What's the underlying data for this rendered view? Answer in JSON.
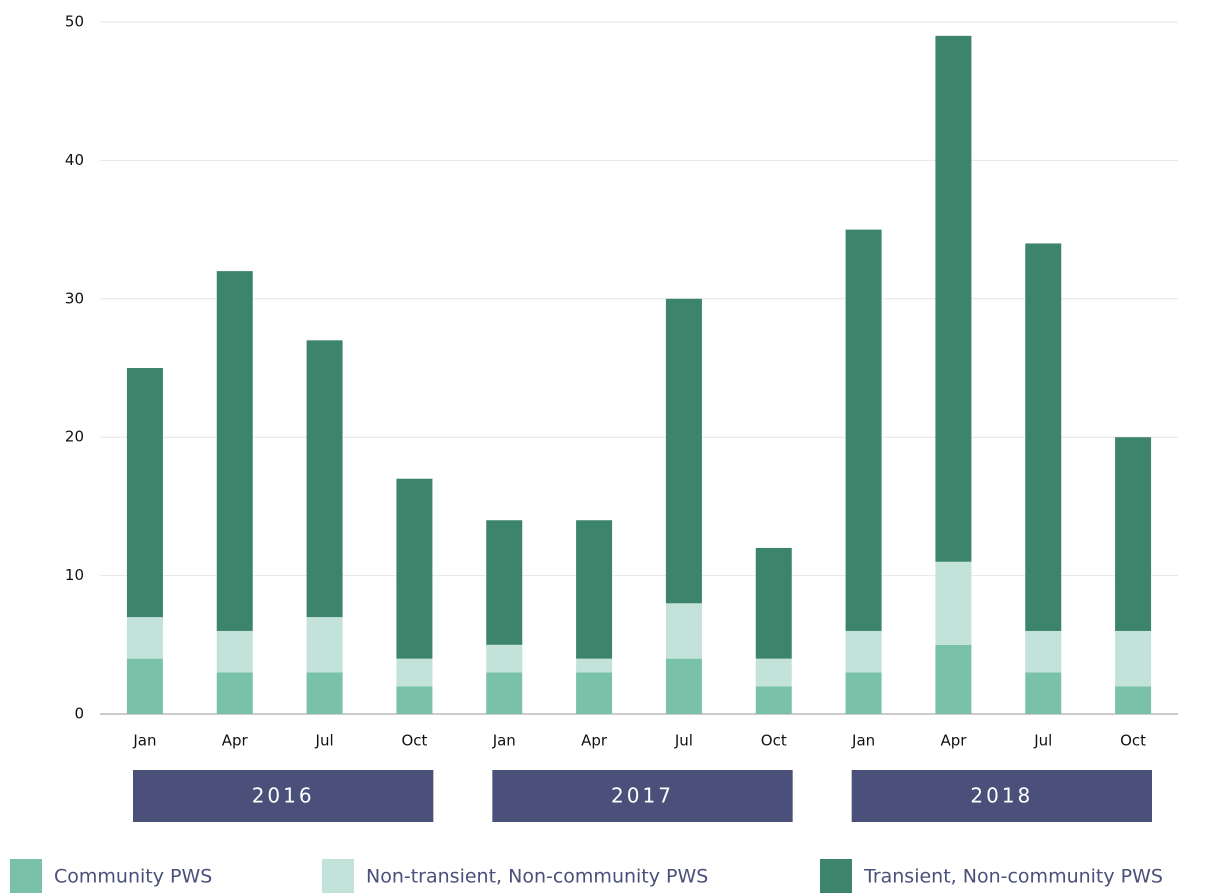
{
  "chart_data": {
    "type": "stacked_bar",
    "categories": [
      "Jan",
      "Apr",
      "Jul",
      "Oct",
      "Jan",
      "Apr",
      "Jul",
      "Oct",
      "Jan",
      "Apr",
      "Jul",
      "Oct"
    ],
    "groups": [
      "2016",
      "2017",
      "2018"
    ],
    "series": [
      {
        "name": "Community PWS",
        "color": "#7ac1aa",
        "values": [
          4,
          3,
          3,
          2,
          3,
          3,
          4,
          2,
          3,
          5,
          3,
          2
        ]
      },
      {
        "name": "Non-transient, Non-community PWS",
        "color": "#c3e2d9",
        "values": [
          3,
          3,
          4,
          2,
          2,
          1,
          4,
          2,
          3,
          6,
          3,
          4
        ]
      },
      {
        "name": "Transient, Non-community PWS",
        "color": "#3d846c",
        "values": [
          18,
          26,
          20,
          13,
          9,
          10,
          22,
          8,
          29,
          38,
          28,
          14
        ]
      }
    ],
    "ylim": [
      0,
      50
    ],
    "yticks": [
      0,
      10,
      20,
      30,
      40,
      50
    ],
    "grid": true,
    "legend": "bottom"
  }
}
